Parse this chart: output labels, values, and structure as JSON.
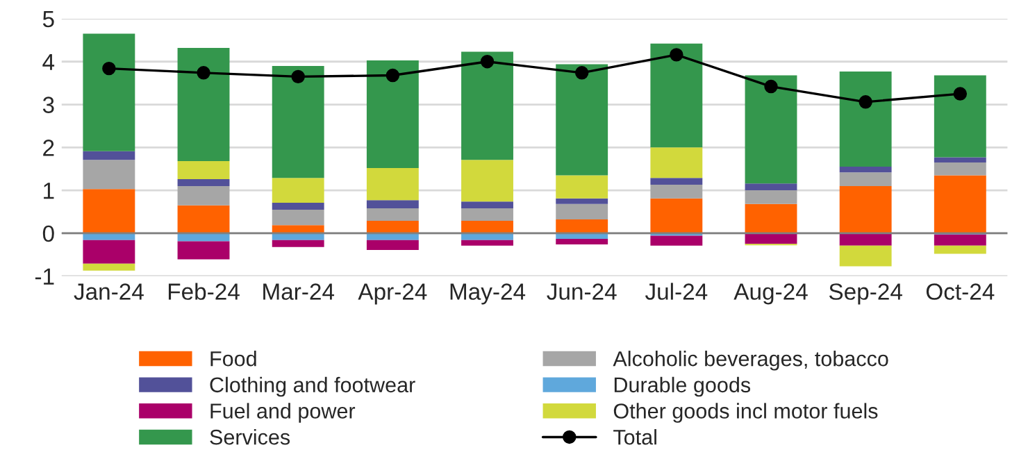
{
  "chart_data": {
    "type": "bar",
    "stacked": true,
    "categories": [
      "Jan-24",
      "Feb-24",
      "Mar-24",
      "Apr-24",
      "May-24",
      "Jun-24",
      "Jul-24",
      "Aug-24",
      "Sep-24",
      "Oct-24"
    ],
    "series": [
      {
        "name": "Food",
        "color": "#ff6200",
        "values": [
          1.03,
          0.65,
          0.19,
          0.29,
          0.29,
          0.32,
          0.81,
          0.68,
          1.1,
          1.35
        ]
      },
      {
        "name": "Alcoholic beverages, tobacco",
        "color": "#a6a6a6",
        "values": [
          0.68,
          0.45,
          0.36,
          0.29,
          0.29,
          0.36,
          0.32,
          0.32,
          0.32,
          0.3
        ]
      },
      {
        "name": "Clothing and footwear",
        "color": "#525199",
        "values": [
          0.2,
          0.16,
          0.16,
          0.19,
          0.16,
          0.13,
          0.16,
          0.16,
          0.13,
          0.12
        ]
      },
      {
        "name": "Durable goods",
        "color": "#5fa8dc",
        "values": [
          -0.16,
          -0.19,
          -0.16,
          -0.16,
          -0.16,
          -0.13,
          -0.06,
          0,
          0,
          -0.03
        ]
      },
      {
        "name": "Fuel and power",
        "color": "#aa0069",
        "values": [
          -0.55,
          -0.42,
          -0.16,
          -0.23,
          -0.13,
          -0.13,
          -0.23,
          -0.25,
          -0.29,
          -0.26
        ]
      },
      {
        "name": "Other goods incl motor fuels",
        "color": "#d2d93c",
        "values": [
          -0.16,
          0.42,
          0.58,
          0.75,
          0.97,
          0.54,
          0.71,
          -0.03,
          -0.48,
          -0.19
        ]
      },
      {
        "name": "Services",
        "color": "#34974d",
        "values": [
          2.74,
          2.64,
          2.61,
          2.51,
          2.52,
          2.59,
          2.42,
          2.52,
          2.22,
          1.91
        ]
      },
      {
        "name": "Total",
        "type": "line",
        "color": "#000000",
        "marker": "circle",
        "values": [
          3.84,
          3.74,
          3.65,
          3.68,
          4.0,
          3.74,
          4.16,
          3.42,
          3.06,
          3.25
        ]
      }
    ],
    "ylim": [
      -1,
      5
    ],
    "yticks": [
      -1,
      0,
      1,
      2,
      3,
      4,
      5
    ],
    "grid": "y",
    "legend": "bottom"
  }
}
